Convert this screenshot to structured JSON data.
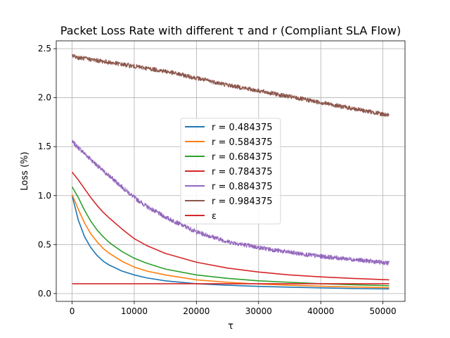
{
  "chart_data": {
    "type": "line",
    "title": "Packet Loss Rate with different τ and r (Compliant SLA Flow)",
    "xlabel": "τ",
    "ylabel": "Loss (%)",
    "xlim": [
      -2550,
      53550
    ],
    "ylim": [
      -0.08,
      2.58
    ],
    "x_ticks": [
      0,
      10000,
      20000,
      30000,
      40000,
      50000
    ],
    "x_tick_labels": [
      "0",
      "10000",
      "20000",
      "30000",
      "40000",
      "50000"
    ],
    "y_ticks": [
      0.0,
      0.5,
      1.0,
      1.5,
      2.0,
      2.5
    ],
    "y_tick_labels": [
      "0.0",
      "0.5",
      "1.0",
      "1.5",
      "2.0",
      "2.5"
    ],
    "grid": true,
    "legend_position": "center",
    "x": [
      0,
      1000,
      2000,
      3000,
      4000,
      5000,
      6000,
      8000,
      10000,
      12000,
      15000,
      20000,
      25000,
      30000,
      35000,
      40000,
      45000,
      51000
    ],
    "series": [
      {
        "name": "r = 0.484375",
        "color": "#1f77b4",
        "noisy": false,
        "values": [
          1.0,
          0.75,
          0.58,
          0.47,
          0.39,
          0.33,
          0.29,
          0.23,
          0.19,
          0.16,
          0.13,
          0.1,
          0.085,
          0.073,
          0.065,
          0.058,
          0.052,
          0.047
        ]
      },
      {
        "name": "r = 0.584375",
        "color": "#ff7f0e",
        "noisy": false,
        "values": [
          1.01,
          0.86,
          0.72,
          0.61,
          0.53,
          0.46,
          0.41,
          0.33,
          0.27,
          0.23,
          0.19,
          0.14,
          0.115,
          0.097,
          0.085,
          0.075,
          0.067,
          0.06
        ]
      },
      {
        "name": "r = 0.684375",
        "color": "#2ca02c",
        "noisy": false,
        "values": [
          1.09,
          0.98,
          0.85,
          0.74,
          0.65,
          0.58,
          0.52,
          0.43,
          0.36,
          0.31,
          0.25,
          0.19,
          0.155,
          0.13,
          0.115,
          0.1,
          0.09,
          0.08
        ]
      },
      {
        "name": "r = 0.784375",
        "color": "#d62728",
        "noisy": false,
        "values": [
          1.24,
          1.16,
          1.07,
          0.98,
          0.9,
          0.83,
          0.77,
          0.66,
          0.56,
          0.49,
          0.41,
          0.32,
          0.26,
          0.22,
          0.19,
          0.17,
          0.155,
          0.14
        ]
      },
      {
        "name": "r = 0.884375",
        "color": "#9467bd",
        "noisy": true,
        "values": [
          1.55,
          1.49,
          1.43,
          1.37,
          1.31,
          1.25,
          1.2,
          1.09,
          0.98,
          0.89,
          0.78,
          0.63,
          0.53,
          0.47,
          0.42,
          0.38,
          0.35,
          0.31
        ]
      },
      {
        "name": "r = 0.984375",
        "color": "#8c564b",
        "noisy": true,
        "values": [
          2.43,
          2.41,
          2.4,
          2.39,
          2.38,
          2.37,
          2.36,
          2.34,
          2.32,
          2.3,
          2.27,
          2.2,
          2.13,
          2.07,
          2.01,
          1.95,
          1.89,
          1.82
        ]
      },
      {
        "name": "ε",
        "color": "#d62728",
        "noisy": false,
        "values": [
          0.1,
          0.1,
          0.1,
          0.1,
          0.1,
          0.1,
          0.1,
          0.1,
          0.1,
          0.1,
          0.1,
          0.1,
          0.1,
          0.1,
          0.1,
          0.1,
          0.1,
          0.1
        ]
      }
    ]
  }
}
